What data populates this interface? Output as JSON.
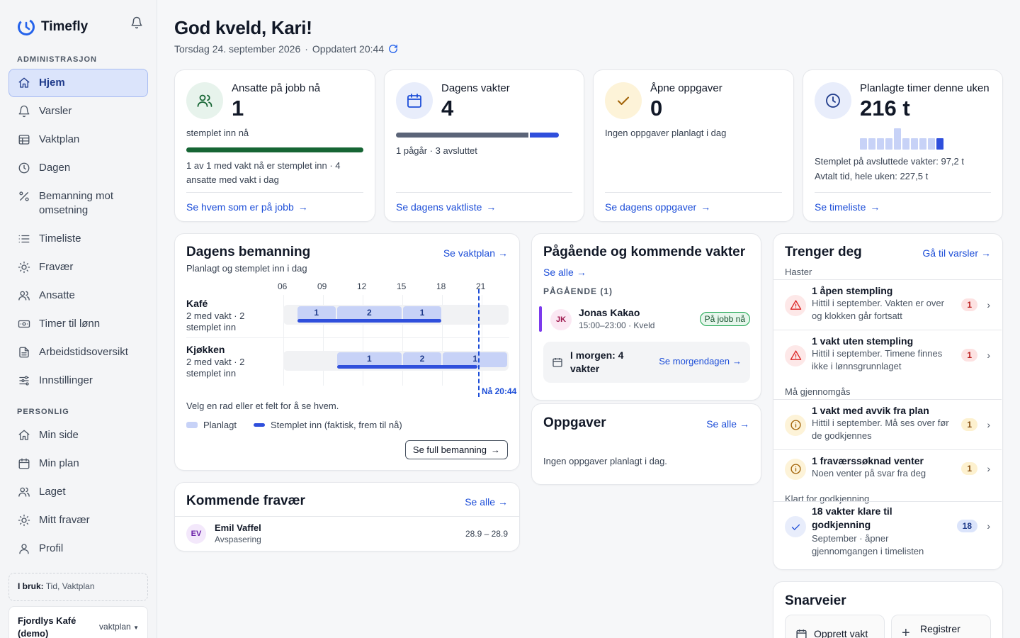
{
  "app": {
    "name": "Timefly"
  },
  "sidebar": {
    "sections": [
      {
        "label": "ADMINISTRASJON"
      },
      {
        "label": "PERSONLIG"
      }
    ],
    "admin_items": [
      {
        "label": "Hjem",
        "icon": "home-icon",
        "active": true
      },
      {
        "label": "Varsler",
        "icon": "bell-icon"
      },
      {
        "label": "Vaktplan",
        "icon": "table-icon"
      },
      {
        "label": "Dagen",
        "icon": "clock-icon"
      },
      {
        "label": "Bemanning mot omsetning",
        "icon": "percent-icon"
      },
      {
        "label": "Timeliste",
        "icon": "list-icon"
      },
      {
        "label": "Fravær",
        "icon": "sun-icon"
      },
      {
        "label": "Ansatte",
        "icon": "users-icon"
      },
      {
        "label": "Timer til lønn",
        "icon": "money-icon"
      },
      {
        "label": "Arbeidstidsoversikt",
        "icon": "document-icon"
      },
      {
        "label": "Innstillinger",
        "icon": "sliders-icon"
      }
    ],
    "personal_items": [
      {
        "label": "Min side",
        "icon": "home-icon"
      },
      {
        "label": "Min plan",
        "icon": "calendar-icon"
      },
      {
        "label": "Laget",
        "icon": "users-icon"
      },
      {
        "label": "Mitt fravær",
        "icon": "sun-icon"
      },
      {
        "label": "Profil",
        "icon": "user-icon"
      }
    ],
    "in_use_label": "I bruk:",
    "in_use_value": "Tid, Vaktplan",
    "org_name": "Fjordlys Kafé (demo)",
    "org_selector": "vaktplan"
  },
  "header": {
    "greeting": "God kveld, Kari!",
    "date": "Torsdag 24. september 2026",
    "updated": "Oppdatert 20:44"
  },
  "kpis": [
    {
      "title": "Ansatte på jobb nå",
      "value": "1",
      "sub": "stemplet inn nå",
      "progress": 1.0,
      "detail": "1 av 1 med vakt nå er stemplet inn · 4 ansatte med vakt i dag",
      "link": "Se hvem som er på jobb",
      "color": "#166534",
      "icon": "users-icon"
    },
    {
      "title": "Dagens vakter",
      "value": "4",
      "split": [
        3,
        1
      ],
      "detail": "1 pågår · 3 avsluttet",
      "link": "Se dagens vaktliste",
      "icon": "calendar-icon"
    },
    {
      "title": "Åpne oppgaver",
      "value": "0",
      "detail": "Ingen oppgaver planlagt i dag",
      "link": "Se dagens oppgaver",
      "icon": "check-icon"
    },
    {
      "title": "Planlagte timer denne uken",
      "value": "216 t",
      "daily_hours_relative": [
        0.55,
        0.55,
        0.55,
        0.55,
        1.0,
        0.55,
        0.55,
        0.55,
        0.55,
        0.55
      ],
      "detail1": "Stemplet på avsluttede vakter: 97,2 t",
      "detail2": "Avtalt tid, hele uken: 227,5 t",
      "link": "Se timeliste",
      "icon": "clock-icon"
    }
  ],
  "staffing": {
    "title": "Dagens bemanning",
    "subtitle": "Planlagt og stemplet inn i dag",
    "link": "Se vaktplan",
    "hours": [
      "06",
      "09",
      "12",
      "15",
      "18",
      "21"
    ],
    "rows": [
      {
        "name": "Kafé",
        "sub": "2 med vakt · 2 stemplet inn",
        "segments": [
          {
            "from": 7,
            "to": 10,
            "count": "1"
          },
          {
            "from": 10,
            "to": 15,
            "count": "2"
          },
          {
            "from": 15,
            "to": 18,
            "count": "1"
          }
        ],
        "clocked": [
          {
            "from": 7,
            "to": 18
          }
        ]
      },
      {
        "name": "Kjøkken",
        "sub": "2 med vakt · 2 stemplet inn",
        "segments": [
          {
            "from": 10,
            "to": 15,
            "count": "1"
          },
          {
            "from": 15,
            "to": 18,
            "count": "2"
          },
          {
            "from": 18,
            "to": 23,
            "count": "1"
          }
        ],
        "clocked": [
          {
            "from": 10,
            "to": 20.73
          }
        ]
      }
    ],
    "now_time": 20.73,
    "now_label": "Nå 20:44",
    "hint": "Velg en rad eller et felt for å se hvem.",
    "legend_planned": "Planlagt",
    "legend_clocked": "Stemplet inn (faktisk, frem til nå)",
    "button": "Se full bemanning"
  },
  "absence": {
    "title": "Kommende fravær",
    "link": "Se alle",
    "items": [
      {
        "initials": "EV",
        "name": "Emil Vaffel",
        "type": "Avspasering",
        "dates": "28.9 – 28.9"
      }
    ]
  },
  "shifts": {
    "title": "Pågående og kommende vakter",
    "link": "Se alle",
    "ongoing_label": "PÅGÅENDE (1)",
    "items": [
      {
        "initials": "JK",
        "name": "Jonas Kakao",
        "time": "15:00–23:00 · Kveld",
        "badge": "På jobb nå"
      }
    ],
    "tomorrow": "I morgen: 4 vakter",
    "tomorrow_link": "Se morgendagen"
  },
  "tasks": {
    "title": "Oppgaver",
    "link": "Se alle",
    "empty": "Ingen oppgaver planlagt i dag."
  },
  "needs": {
    "title": "Trenger deg",
    "link": "Gå til varsler",
    "groups": [
      "Haster",
      "Må gjennomgås",
      "Klart for godkjenning"
    ],
    "items": [
      {
        "title": "1 åpen stempling",
        "desc": "Hittil i september. Vakten er over og klokken går fortsatt",
        "count": "1",
        "kind": "urgent"
      },
      {
        "title": "1 vakt uten stempling",
        "desc": "Hittil i september. Timene finnes ikke i lønnsgrunnlaget",
        "count": "1",
        "kind": "urgent"
      },
      {
        "title": "1 vakt med avvik fra plan",
        "desc": "Hittil i september. Må ses over før de godkjennes",
        "count": "1",
        "kind": "review"
      },
      {
        "title": "1 fraværssøknad venter",
        "desc": "Noen venter på svar fra deg",
        "count": "1",
        "kind": "review"
      },
      {
        "title": "18 vakter klare til godkjenning",
        "desc": "September · åpner gjennomgangen i timelisten",
        "count": "18",
        "kind": "ready"
      }
    ]
  },
  "shortcuts": {
    "title": "Snarveier",
    "items": [
      {
        "label": "Opprett vakt",
        "icon": "calendar-icon"
      },
      {
        "label": "Registrer fravær",
        "icon": "plus-icon"
      }
    ]
  },
  "colors": {
    "accent": "#1d4ed8",
    "active_bg": "#dbe4fb",
    "planned": "#c7d2f7",
    "clocked": "#2f4fdc",
    "green": "#166534",
    "urgent": "#dc2626",
    "review": "#ca8a04"
  }
}
